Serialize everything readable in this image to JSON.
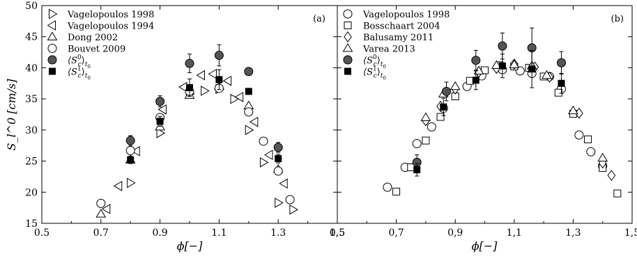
{
  "chart_data": [
    {
      "panel": "a",
      "panel_label": "(a)",
      "type": "scatter",
      "xlabel": "ϕ[−]",
      "ylabel": "S_l^0 [cm/s]",
      "xlim": [
        0.5,
        1.5
      ],
      "ylim": [
        15,
        50
      ],
      "xticks": [
        "0.5",
        "0.7",
        "0.9",
        "1.1",
        "1.3",
        "1.5"
      ],
      "yticks": [
        "15",
        "20",
        "25",
        "30",
        "35",
        "40",
        "45",
        "50"
      ],
      "legend_position": "top-left",
      "series": [
        {
          "name": "Vagelopoulos 1998",
          "marker": "tri-right",
          "x": [
            0.8,
            0.9,
            1.0,
            1.05,
            1.1,
            1.15,
            1.2,
            1.25,
            1.3,
            1.35
          ],
          "y": [
            21.5,
            29.5,
            35.8,
            36.3,
            36.6,
            35.0,
            30.0,
            24.8,
            18.3,
            17.2
          ]
        },
        {
          "name": "Vagelopoulos 1994",
          "marker": "tri-left",
          "x": [
            0.72,
            0.76,
            0.82,
            0.91,
            0.98,
            1.04,
            1.08,
            1.13,
            1.17,
            1.22,
            1.27,
            1.32
          ],
          "y": [
            17.3,
            21.0,
            26.6,
            33.3,
            36.9,
            38.8,
            39.0,
            37.9,
            35.3,
            31.3,
            26.0,
            21.4
          ]
        },
        {
          "name": "Dong 2002",
          "marker": "tri-up",
          "x": [
            0.7,
            0.8,
            0.9,
            1.0,
            1.1,
            1.2,
            1.3
          ],
          "y": [
            16.5,
            25.2,
            30.5,
            35.6,
            37.0,
            33.9,
            23.7
          ]
        },
        {
          "name": "Bouvet 2009",
          "marker": "circle",
          "x": [
            0.7,
            0.8,
            0.9,
            1.0,
            1.1,
            1.2,
            1.25,
            1.3,
            1.34
          ],
          "y": [
            18.2,
            26.7,
            32.0,
            36.2,
            36.7,
            32.9,
            28.2,
            23.4,
            18.8
          ]
        },
        {
          "name": "⟨S_c^0⟩_{t0}",
          "marker": "filled-circle",
          "x": [
            0.8,
            0.9,
            1.0,
            1.1,
            1.2,
            1.3
          ],
          "y": [
            28.3,
            34.6,
            40.7,
            42.0,
            39.4,
            27.2
          ],
          "err": [
            0.8,
            0.9,
            1.5,
            1.7,
            0.4,
            0.8
          ]
        },
        {
          "name": "⟨S_c^1⟩_{t0}",
          "marker": "filled-square",
          "x": [
            0.8,
            0.9,
            1.0,
            1.1,
            1.2,
            1.3
          ],
          "y": [
            25.2,
            31.4,
            36.8,
            38.1,
            36.2,
            25.4
          ],
          "err": [
            0.6,
            0.8,
            1.4,
            1.6,
            0.4,
            0.7
          ]
        }
      ]
    },
    {
      "panel": "b",
      "panel_label": "(b)",
      "type": "scatter",
      "xlabel": "ϕ[−]",
      "ylabel": "",
      "xlim": [
        0.5,
        1.5
      ],
      "ylim": [
        15,
        50
      ],
      "xticks": [
        "0,5",
        "0,7",
        "0,9",
        "1,1",
        "1,3",
        "1,5"
      ],
      "legend_position": "top-left",
      "series": [
        {
          "name": "Vagelopoulos 1998",
          "marker": "circle",
          "x": [
            0.67,
            0.73,
            0.77,
            0.82,
            0.86,
            0.94,
            0.99,
            1.06,
            1.12,
            1.16,
            1.22,
            1.26,
            1.32,
            1.36,
            1.4
          ],
          "y": [
            20.8,
            24.0,
            27.8,
            30.5,
            33.5,
            37.0,
            38.7,
            39.7,
            39.5,
            39.1,
            38.6,
            36.6,
            29.2,
            26.5,
            24.2
          ]
        },
        {
          "name": "Bosschaart 2004",
          "marker": "square",
          "x": [
            0.7,
            0.75,
            0.8,
            0.85,
            0.9,
            0.95,
            1.0,
            1.05,
            1.1,
            1.15,
            1.2,
            1.25,
            1.3,
            1.35,
            1.4,
            1.45
          ],
          "y": [
            20.1,
            24.0,
            28.3,
            32.1,
            35.4,
            37.9,
            39.6,
            40.4,
            40.2,
            40.0,
            38.6,
            36.0,
            32.6,
            28.5,
            23.9,
            19.8
          ]
        },
        {
          "name": "Balusamy 2011",
          "marker": "diamond",
          "x": [
            0.8,
            0.85,
            0.9,
            0.98,
            1.04,
            1.1,
            1.17,
            1.22,
            1.32,
            1.4,
            1.43
          ],
          "y": [
            31.5,
            33.8,
            36.6,
            39.3,
            39.9,
            40.6,
            40.1,
            38.5,
            32.7,
            24.7,
            22.7
          ]
        },
        {
          "name": "Varea 2013",
          "marker": "tri-up",
          "x": [
            0.8,
            0.86,
            0.9,
            0.98,
            1.04,
            1.1,
            1.16,
            1.21,
            1.3,
            1.4
          ],
          "y": [
            32.0,
            35.8,
            37.0,
            39.5,
            40.4,
            40.5,
            40.3,
            38.8,
            33.1,
            25.5
          ]
        },
        {
          "name": "⟨S_c^0⟩_{t0}",
          "marker": "filled-circle",
          "x": [
            0.77,
            0.87,
            0.97,
            1.06,
            1.16,
            1.26
          ],
          "y": [
            24.8,
            36.2,
            41.2,
            43.5,
            43.2,
            40.8
          ],
          "err": [
            1.2,
            1.5,
            1.6,
            2.1,
            3.2,
            1.8
          ]
        },
        {
          "name": "⟨S_c^1⟩_{t0}",
          "marker": "filled-square",
          "x": [
            0.77,
            0.86,
            0.97,
            1.06,
            1.16,
            1.26
          ],
          "y": [
            23.6,
            33.7,
            38.0,
            40.3,
            39.8,
            37.5
          ],
          "err": [
            1.0,
            1.4,
            1.5,
            1.9,
            3.0,
            1.6
          ]
        }
      ]
    }
  ]
}
